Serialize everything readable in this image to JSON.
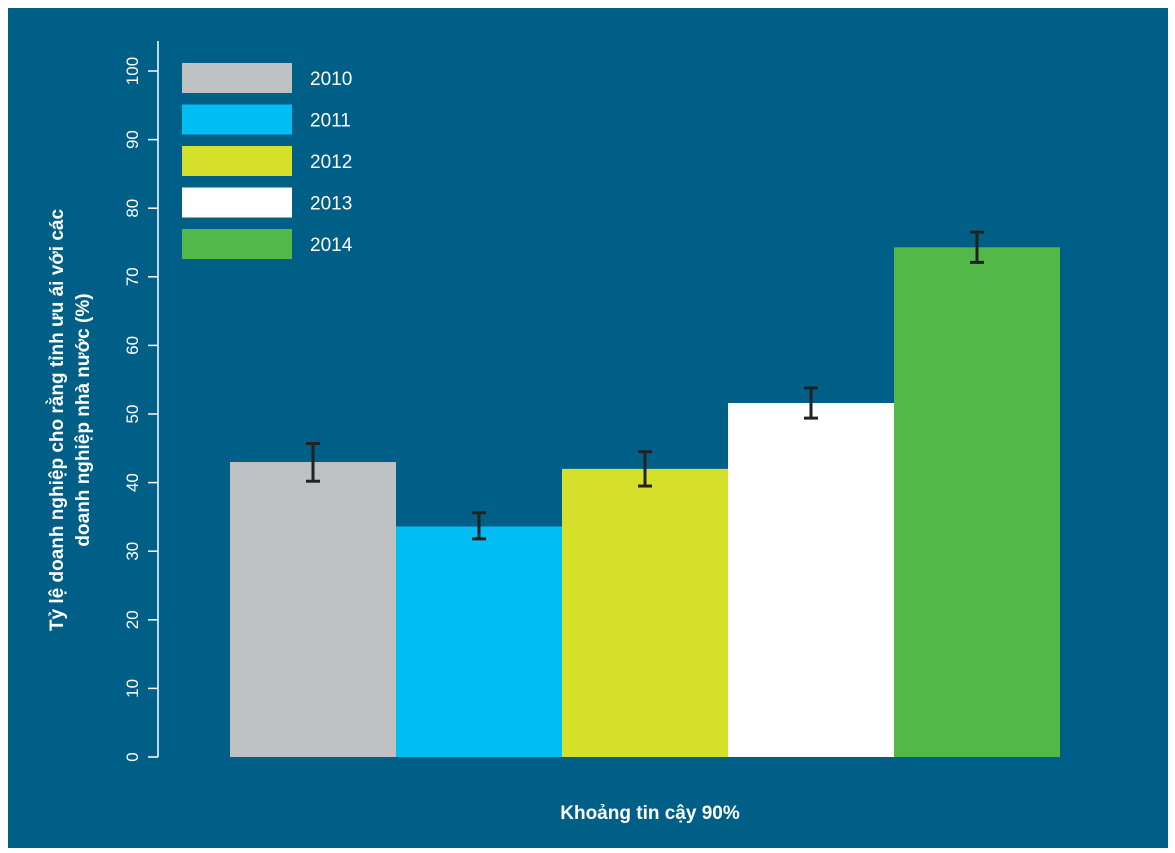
{
  "chart_data": {
    "type": "bar",
    "background_color": "#005f87",
    "xlabel": "Khoảng tin cậy 90%",
    "ylabel_lines": [
      "Tỷ lệ doanh nghiệp cho rằng tỉnh ưu ái với các",
      "doanh nghiệp nhà nước (%)"
    ],
    "ylim": [
      0,
      100
    ],
    "yticks": [
      "0",
      "10",
      "20",
      "30",
      "40",
      "50",
      "60",
      "70",
      "80",
      "90",
      "100"
    ],
    "legend_position": "top-left",
    "series": [
      {
        "name": "2010",
        "value": 43,
        "ci_low": 40.2,
        "ci_high": 45.7,
        "color": "#bfc0c2"
      },
      {
        "name": "2011",
        "value": 33.6,
        "ci_low": 31.8,
        "ci_high": 35.6,
        "color": "#00bef2"
      },
      {
        "name": "2012",
        "value": 42,
        "ci_low": 39.5,
        "ci_high": 44.5,
        "color": "#d5e02a"
      },
      {
        "name": "2013",
        "value": 51.6,
        "ci_low": 49.4,
        "ci_high": 53.8,
        "color": "#ffffff"
      },
      {
        "name": "2014",
        "value": 74.3,
        "ci_low": 72.1,
        "ci_high": 76.5,
        "color": "#52b848"
      }
    ],
    "errorbar_color": "#222222",
    "axis_color": "#ffffff"
  }
}
